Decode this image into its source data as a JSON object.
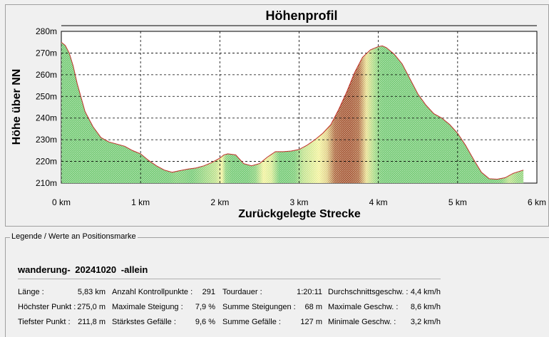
{
  "chart_data": {
    "type": "area",
    "title": "Höhenprofil",
    "xlabel": "Zurückgelegte Strecke",
    "ylabel": "Höhe über NN",
    "xlim": [
      0,
      6
    ],
    "ylim": [
      210,
      280
    ],
    "grid": true,
    "x_ticks": [
      "0 km",
      "1 km",
      "2 km",
      "3 km",
      "4 km",
      "5 km",
      "6 km"
    ],
    "y_ticks": [
      "210m",
      "220m",
      "230m",
      "240m",
      "250m",
      "260m",
      "270m",
      "280m"
    ],
    "x": [
      0.0,
      0.05,
      0.1,
      0.15,
      0.2,
      0.3,
      0.4,
      0.5,
      0.6,
      0.7,
      0.8,
      0.9,
      1.0,
      1.1,
      1.2,
      1.3,
      1.4,
      1.5,
      1.6,
      1.7,
      1.8,
      1.9,
      2.0,
      2.05,
      2.1,
      2.2,
      2.3,
      2.4,
      2.5,
      2.6,
      2.7,
      2.8,
      2.9,
      3.0,
      3.1,
      3.2,
      3.3,
      3.4,
      3.5,
      3.6,
      3.7,
      3.8,
      3.9,
      4.0,
      4.05,
      4.1,
      4.2,
      4.3,
      4.4,
      4.5,
      4.6,
      4.7,
      4.8,
      4.9,
      5.0,
      5.1,
      5.2,
      5.3,
      5.4,
      5.5,
      5.6,
      5.7,
      5.83
    ],
    "y": [
      275.0,
      273.5,
      270.0,
      264.0,
      256.0,
      243.0,
      236.0,
      231.0,
      229.0,
      228.0,
      227.0,
      225.0,
      223.5,
      220.5,
      218.0,
      216.0,
      215.0,
      215.8,
      216.5,
      217.0,
      218.0,
      219.5,
      221.5,
      223.0,
      223.5,
      223.0,
      219.0,
      218.0,
      219.0,
      222.0,
      224.5,
      224.5,
      224.8,
      225.5,
      227.5,
      230.0,
      233.0,
      237.0,
      244.0,
      252.0,
      261.0,
      268.0,
      271.5,
      273.0,
      273.3,
      272.5,
      269.5,
      265.0,
      258.0,
      251.0,
      246.0,
      242.0,
      240.0,
      237.0,
      233.0,
      227.5,
      221.0,
      215.0,
      212.0,
      211.8,
      212.5,
      214.5,
      216.0
    ],
    "gradient_colors": {
      "flat": "#6fc86f",
      "moderate": "#f2f29a",
      "steep": "#a2512c"
    }
  },
  "legend": {
    "title": "Legende / Werte an Positionsmarke",
    "tour_name": {
      "prefix": "wanderung-",
      "date": "20241020",
      "suffix": "-allein"
    },
    "stats": [
      [
        {
          "label": "Länge :",
          "value": "5,83 km"
        },
        {
          "label": "Höchster Punkt :",
          "value": "275,0 m"
        },
        {
          "label": "Tiefster Punkt :",
          "value": "211,8 m"
        }
      ],
      [
        {
          "label": "Anzahl Kontrollpunkte :",
          "value": "291"
        },
        {
          "label": "Maximale Steigung :",
          "value": "7,9 %"
        },
        {
          "label": "Stärkstes Gefälle :",
          "value": "9,6 %"
        }
      ],
      [
        {
          "label": "Tourdauer :",
          "value": "1:20:11"
        },
        {
          "label": "Summe Steigungen :",
          "value": "68 m"
        },
        {
          "label": "Summe Gefälle :",
          "value": "127 m"
        }
      ],
      [
        {
          "label": "Durchschnittsgeschw. :",
          "value": "4,4 km/h"
        },
        {
          "label": "Maximale Geschw. :",
          "value": "8,6 km/h"
        },
        {
          "label": "Minimale Geschw. :",
          "value": "3,2 km/h"
        }
      ]
    ]
  }
}
